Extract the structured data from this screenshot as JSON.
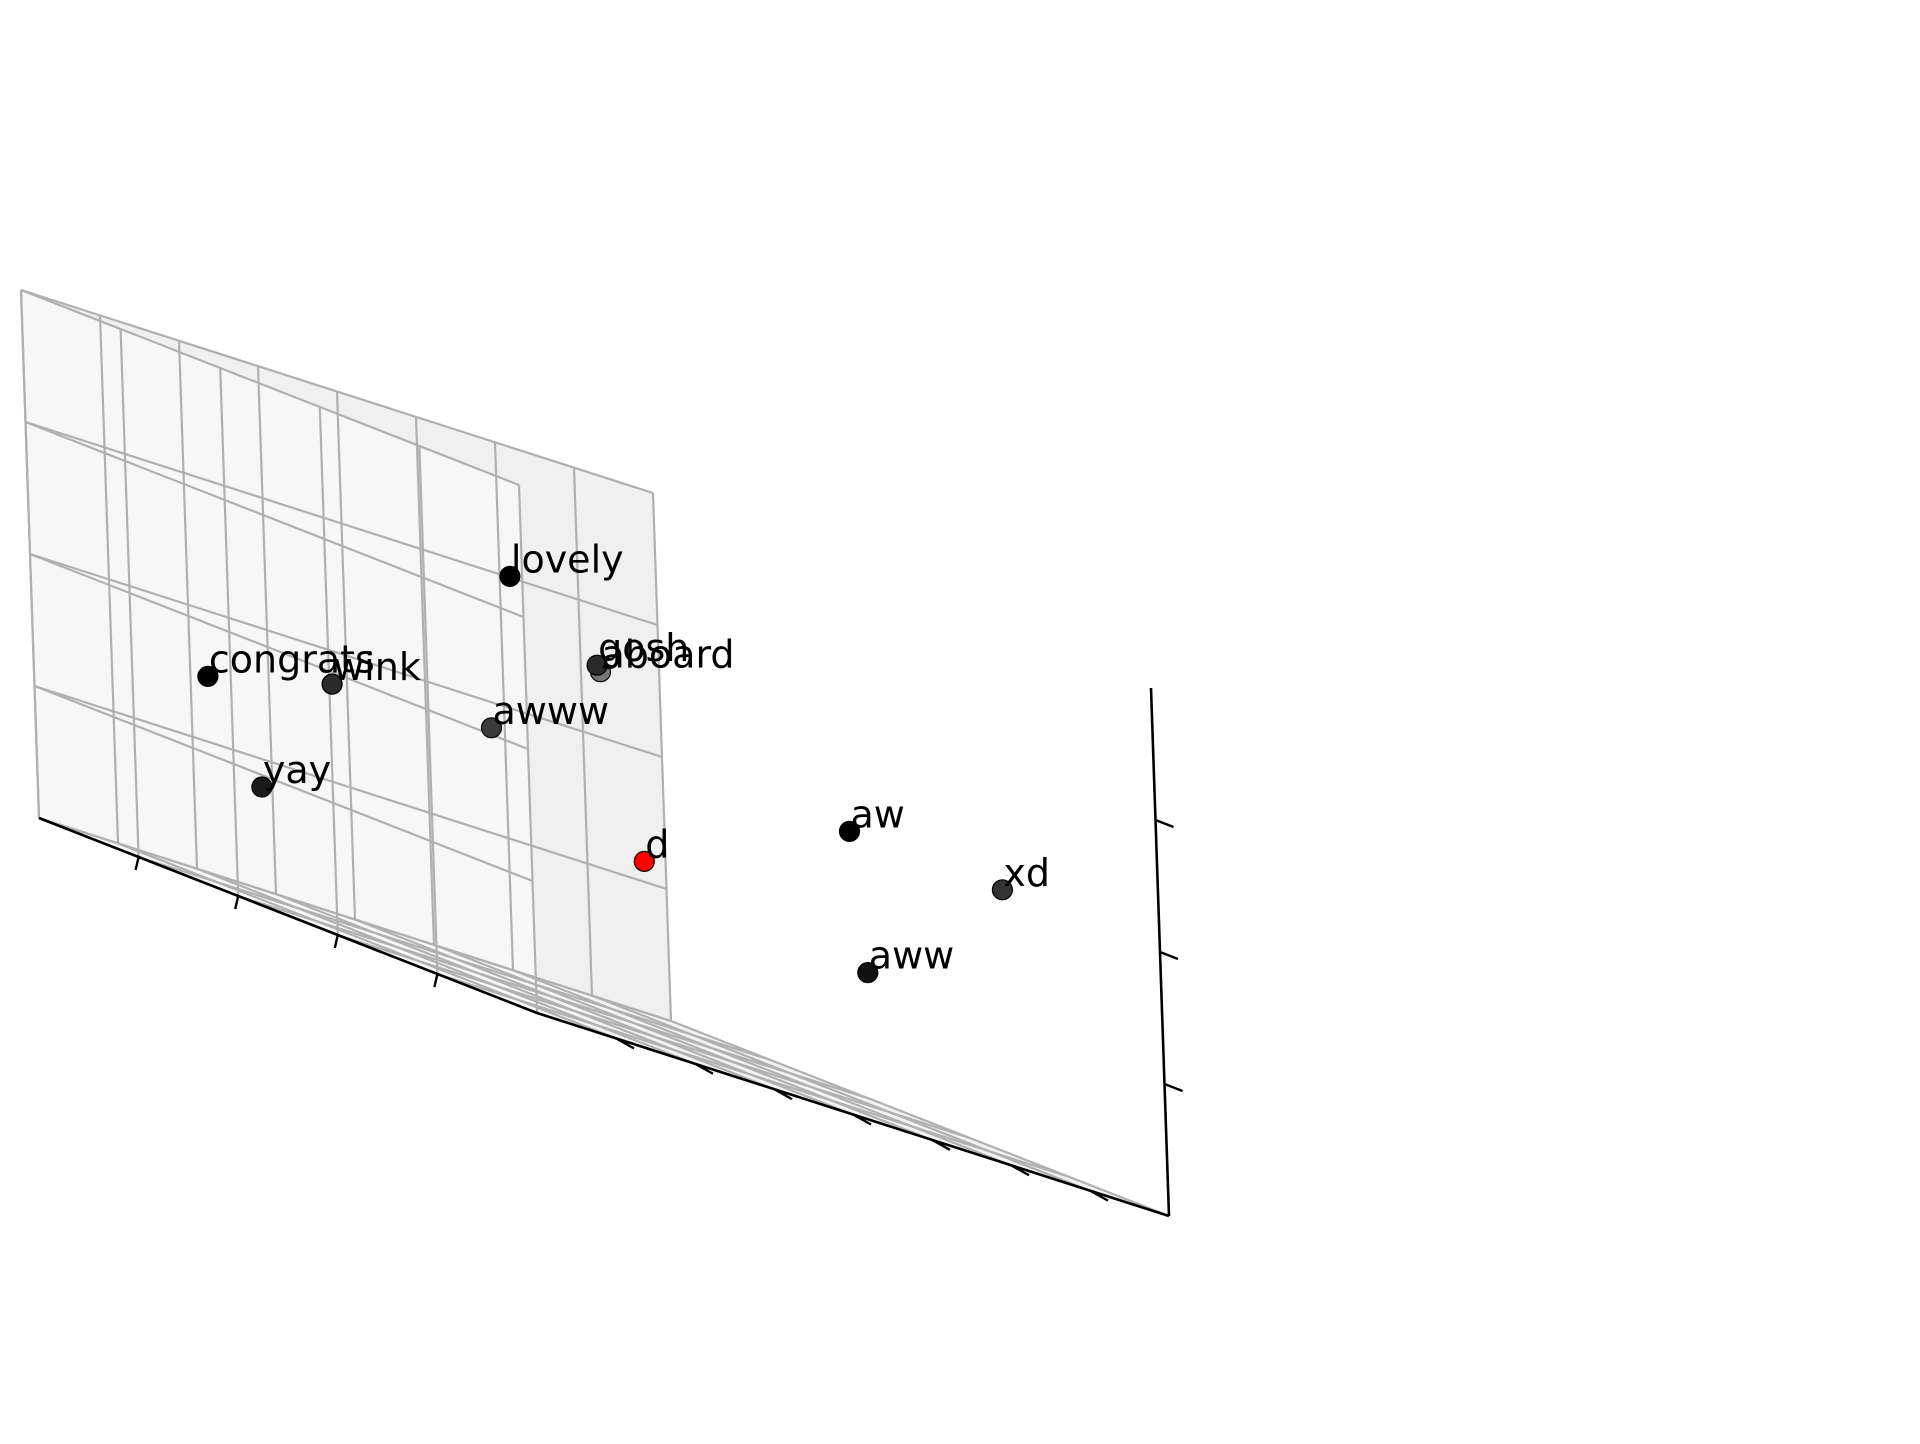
{
  "chart_data": {
    "type": "scatter",
    "projection": "3d",
    "title": "",
    "xlabel": "",
    "ylabel": "",
    "zlabel": "",
    "grid": true,
    "tick_labels_shown": false,
    "xlim": [
      0,
      5
    ],
    "ylim": [
      0,
      8
    ],
    "zlim": [
      0,
      4
    ],
    "points": [
      {
        "label": "lovely",
        "x": 0.88,
        "y": 0.95,
        "z": 3.23,
        "color": "#000000"
      },
      {
        "label": "aboard",
        "x": 0.38,
        "y": 1.44,
        "z": 2.75,
        "color": "#777777"
      },
      {
        "label": "gosh",
        "x": 1.16,
        "y": 2.38,
        "z": 2.75,
        "color": "#2a2a2a"
      },
      {
        "label": "aw",
        "x": 0.55,
        "y": 4.77,
        "z": 2.13,
        "color": "#000000"
      },
      {
        "label": "xd",
        "x": 0.35,
        "y": 6.45,
        "z": 2.07,
        "color": "#333333"
      },
      {
        "label": "awww",
        "x": 2.28,
        "y": 2.41,
        "z": 1.95,
        "color": "#3a3a3a"
      },
      {
        "label": "congrats",
        "x": 3.51,
        "y": 0.35,
        "z": 1.58,
        "color": "#000000"
      },
      {
        "label": "wink",
        "x": 3.45,
        "y": 1.86,
        "z": 1.83,
        "color": "#2a2a2a"
      },
      {
        "label": "d",
        "x": 2.33,
        "y": 4.37,
        "z": 1.3,
        "color": "#ff0000"
      },
      {
        "label": "aww",
        "x": 1.74,
        "y": 6.44,
        "z": 1.03,
        "color": "#111111"
      },
      {
        "label": "yay",
        "x": 4.55,
        "y": 2.3,
        "z": 0.81,
        "color": "#1a1a1a"
      }
    ],
    "colors": {
      "pane": "#f2f2f2",
      "grid": "#b0b0b0",
      "axis": "#000000",
      "highlight": "#ff0000"
    }
  }
}
